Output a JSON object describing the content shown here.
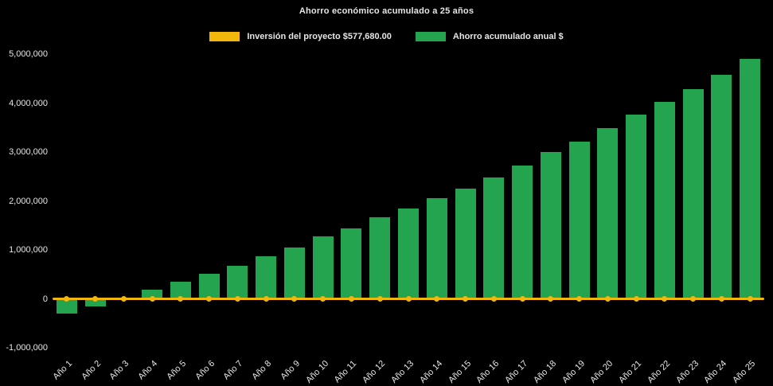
{
  "chart_data": {
    "type": "bar",
    "title": "Ahorro económico acumulado a 25 años",
    "background": "#000000",
    "text_color": "#e6e6e6",
    "legend_position": "top",
    "grid": false,
    "categories": [
      "Año 1",
      "Año 2",
      "Año 3",
      "Año 4",
      "Año 5",
      "Año 6",
      "Año 7",
      "Año 8",
      "Año 9",
      "Año 10",
      "Año 11",
      "Año 12",
      "Año 13",
      "Año 14",
      "Año 15",
      "Año 16",
      "Año 17",
      "Año 18",
      "Año 19",
      "Año 20",
      "Año 21",
      "Año 22",
      "Año 23",
      "Año 24",
      "Año 25"
    ],
    "series": [
      {
        "name": "Inversión del proyecto $577,680.00",
        "type": "line",
        "color": "#f2b70d",
        "investment_amount_label": "$577,680.00",
        "value": 0
      },
      {
        "name": "Ahorro acumulado anual $",
        "type": "bar",
        "color": "#24a44e",
        "values": [
          -300000,
          -160000,
          20000,
          190000,
          350000,
          520000,
          680000,
          870000,
          1050000,
          1270000,
          1440000,
          1670000,
          1850000,
          2060000,
          2260000,
          2480000,
          2730000,
          3000000,
          3210000,
          3490000,
          3770000,
          4030000,
          4290000,
          4580000,
          4900000
        ]
      }
    ],
    "ylim": [
      -1000000,
      5000000
    ],
    "yticks": {
      "values": [
        5000000,
        4000000,
        3000000,
        2000000,
        1000000,
        0,
        -1000000
      ],
      "labels": [
        "5,000,000",
        "4,000,000",
        "3,000,000",
        "2,000,000",
        "1,000,000",
        "0",
        "-1,000,000"
      ]
    }
  }
}
